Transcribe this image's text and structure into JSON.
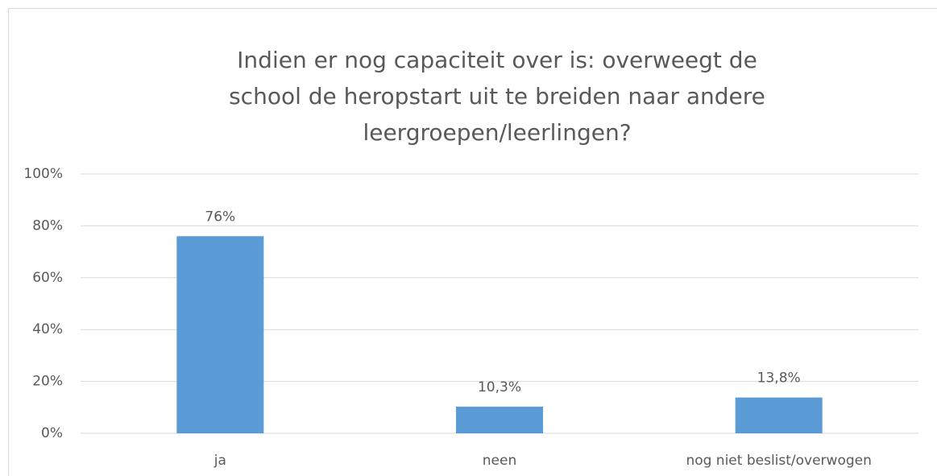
{
  "chart_data": {
    "type": "bar",
    "title": "Indien er nog capaciteit over is: overweegt de school de heropstart uit te breiden naar andere leergroepen/leerlingen?",
    "categories": [
      "ja",
      "neen",
      "nog niet beslist/overwogen"
    ],
    "values": [
      76,
      10.3,
      13.8
    ],
    "value_labels": [
      "76%",
      "10,3%",
      "13,8%"
    ],
    "color": "#5b9bd5",
    "ylim": [
      0,
      100
    ],
    "yticks": [
      {
        "value": 0,
        "label": "0%"
      },
      {
        "value": 20,
        "label": "20%"
      },
      {
        "value": 40,
        "label": "40%"
      },
      {
        "value": 60,
        "label": "60%"
      },
      {
        "value": 80,
        "label": "80%"
      },
      {
        "value": 100,
        "label": "100%"
      }
    ],
    "grid": true
  }
}
